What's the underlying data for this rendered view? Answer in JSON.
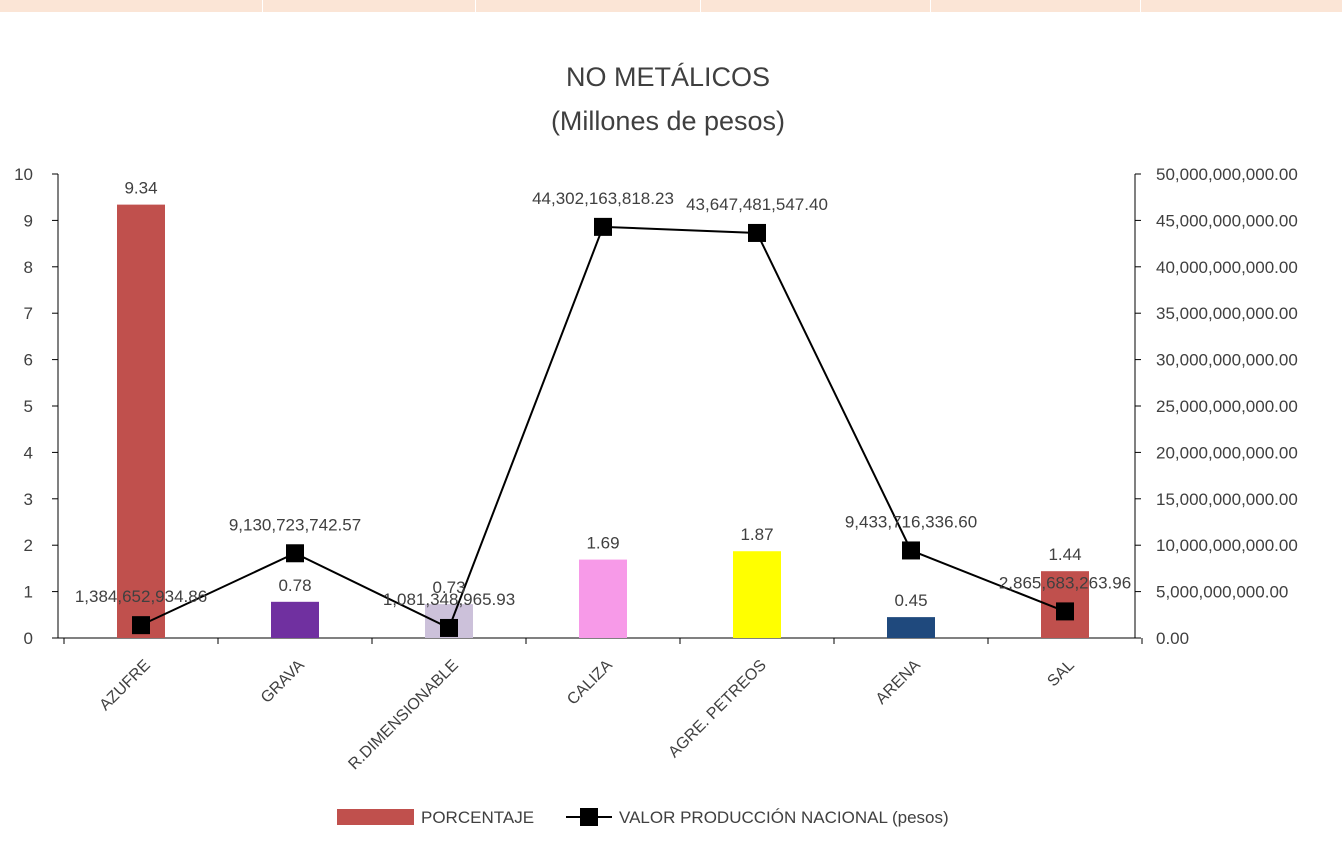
{
  "chart_data": {
    "type": "bar",
    "title": "NO METÁLICOS",
    "subtitle": "(Millones de pesos)",
    "categories": [
      "AZUFRE",
      "GRAVA",
      "R.DIMENSIONABLE",
      "CALIZA",
      "AGRE. PETREOS",
      "ARENA",
      "SAL"
    ],
    "series": [
      {
        "name": "PORCENTAJE",
        "type": "bar",
        "axis": "left",
        "values": [
          9.34,
          0.78,
          0.73,
          1.69,
          1.87,
          0.45,
          1.44
        ],
        "labels": [
          "9.34",
          "0.78",
          "0.73",
          "1.69",
          "1.87",
          "0.45",
          "1.44"
        ],
        "colors": [
          "#c0504d",
          "#7030a0",
          "#ccc1da",
          "#f79ae8",
          "#ffff00",
          "#1f497d",
          "#c0504d"
        ]
      },
      {
        "name": "VALOR PRODUCCIÓN NACIONAL (pesos)",
        "type": "line",
        "axis": "right",
        "color": "#000000",
        "values": [
          1384652934.86,
          9130723742.57,
          1081348965.93,
          44302163818.23,
          43647481547.4,
          9433716336.6,
          2865683263.96
        ],
        "labels": [
          "1,384,652,934.86",
          "9,130,723,742.57",
          "1,081,348,965.93",
          "44,302,163,818.23",
          "43,647,481,547.40",
          "9,433,716,336.60",
          "2,865,683,263.96"
        ]
      }
    ],
    "y_left": {
      "ylim": [
        0,
        10
      ],
      "ticks": [
        "0",
        "1",
        "2",
        "3",
        "4",
        "5",
        "6",
        "7",
        "8",
        "9",
        "10"
      ]
    },
    "y_right": {
      "ylim": [
        0,
        50000000000
      ],
      "ticks": [
        "0.00",
        "5,000,000,000.00",
        "10,000,000,000.00",
        "15,000,000,000.00",
        "20,000,000,000.00",
        "25,000,000,000.00",
        "30,000,000,000.00",
        "35,000,000,000.00",
        "40,000,000,000.00",
        "45,000,000,000.00",
        "50,000,000,000.00"
      ]
    },
    "grid": false,
    "legend_position": "bottom"
  },
  "colors": {
    "header_strip": "#fbe5d6",
    "axis": "#000000",
    "text": "#404040"
  }
}
